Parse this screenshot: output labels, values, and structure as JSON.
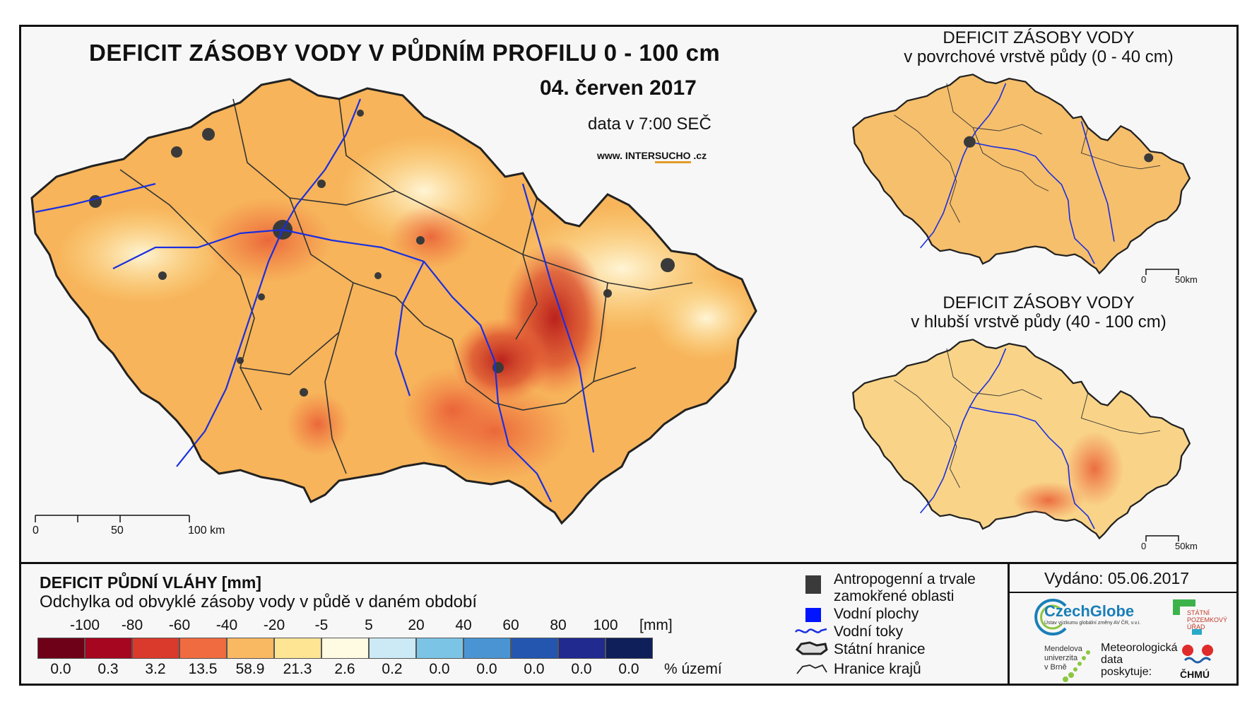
{
  "header": {
    "title": "DEFICIT ZÁSOBY VODY V PŮDNÍM PROFILU 0 - 100 cm",
    "date": "04. červen 2017",
    "time": "data v 7:00 SEČ",
    "website_prefix": "www. INTER",
    "website_highlight": "SUCHO",
    "website_suffix": " .cz"
  },
  "insets": [
    {
      "title_line1": "DEFICIT ZÁSOBY VODY",
      "title_line2": "v povrchové vrstvě půdy (0 - 40 cm)",
      "scale_labels": [
        "0",
        "50km"
      ]
    },
    {
      "title_line1": "DEFICIT ZÁSOBY VODY",
      "title_line2": "v hlubší vrstvě půdy (40 - 100 cm)",
      "scale_labels": [
        "0",
        "50km"
      ]
    }
  ],
  "main_scale_labels": [
    "0",
    "50",
    "100 km"
  ],
  "legend": {
    "title": "DEFICIT PŮDNÍ VLÁHY [mm]",
    "subtitle": "Odchylka od obvyklé zásoby vody v půdě v daném období",
    "unit": "[mm]",
    "percent_label": "% území",
    "breaks": [
      "-100",
      "-80",
      "-60",
      "-40",
      "-20",
      "-5",
      "5",
      "20",
      "40",
      "60",
      "80",
      "100"
    ],
    "colors": [
      "#6e0018",
      "#a6061f",
      "#d93a2c",
      "#f06b3f",
      "#f9b862",
      "#fde594",
      "#fefbe2",
      "#cbeaf5",
      "#7cc4e6",
      "#4a94d3",
      "#2456b0",
      "#202a8f",
      "#0e1f5a"
    ],
    "percentages": [
      "0.0",
      "0.3",
      "3.2",
      "13.5",
      "58.9",
      "21.3",
      "2.6",
      "0.2",
      "0.0",
      "0.0",
      "0.0",
      "0.0",
      "0.0"
    ]
  },
  "map_key": {
    "anthropogenic": "Antropogenní a trvale",
    "anthropogenic2": "zamokřené oblasti",
    "water_bodies": "Vodní plochy",
    "rivers": "Vodní toky",
    "state_border": "Státní hranice",
    "regions": "Hranice krajů"
  },
  "issued": "Vydáno: 05.06.2017",
  "logos": {
    "czechglobe": "CzechGlobe",
    "czechglobe_sub": "Ústav výzkumu globální změny AV ČR, v.v.i.",
    "spu": [
      "STÁTNÍ",
      "POZEMKOVÝ",
      "ÚŘAD"
    ],
    "mendel": [
      "Mendelova",
      "univerzita",
      "v Brně"
    ],
    "meteo": [
      "Meteorologická",
      "data",
      "poskytuje:"
    ],
    "chmu": "ČHMÚ"
  },
  "colors": {
    "frame": "#111111",
    "river": "#1a2fe0",
    "urban": "#3a3a3a",
    "map_main": "#f7b45a"
  }
}
